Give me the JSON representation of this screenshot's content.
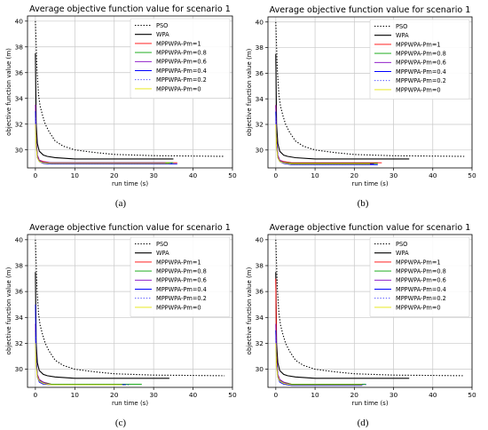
{
  "figure": {
    "panel_labels": [
      "(a)",
      "(b)",
      "(c)",
      "(d)"
    ]
  },
  "chart_data": [
    {
      "type": "line",
      "panel": "(a)",
      "title": "Average objective function value for scenario 1",
      "xlabel": "run time (s)",
      "ylabel": "objective function value (m)",
      "xlim": [
        -2,
        50
      ],
      "ylim": [
        28.6,
        40.4
      ],
      "xticks": [
        0,
        10,
        20,
        30,
        40,
        50
      ],
      "yticks": [
        30,
        32,
        34,
        36,
        38,
        40
      ],
      "grid": true,
      "legend_position": "top-right",
      "series": [
        {
          "name": "PSO",
          "color": "#000000",
          "dash": "dotted",
          "x": [
            0,
            0.4,
            0.8,
            1.2,
            1.8,
            2.5,
            3.5,
            5,
            7,
            10,
            15,
            20,
            30,
            48
          ],
          "y": [
            40,
            36.2,
            34.3,
            33.4,
            32.7,
            32,
            31.4,
            30.7,
            30.3,
            30,
            29.8,
            29.65,
            29.55,
            29.5
          ]
        },
        {
          "name": "WPA",
          "color": "#000000",
          "dash": "solid",
          "x": [
            0,
            0.2,
            0.5,
            1,
            2,
            3,
            5,
            10,
            35
          ],
          "y": [
            37.5,
            32,
            30.5,
            29.9,
            29.6,
            29.5,
            29.4,
            29.3,
            29.3
          ]
        },
        {
          "name": "MPPWPA-Pm=1",
          "color": "#ff0000",
          "dash": "solid",
          "x": [
            0,
            0.2,
            0.5,
            1,
            2,
            4,
            36
          ],
          "y": [
            33.5,
            30.8,
            29.6,
            29.2,
            29.1,
            29.0,
            29.0
          ]
        },
        {
          "name": "MPPWPA-Pm=0.8",
          "color": "#00a000",
          "dash": "solid",
          "x": [
            0,
            0.2,
            0.5,
            1,
            2,
            4,
            35
          ],
          "y": [
            33,
            30.6,
            29.5,
            29.15,
            29.05,
            29.0,
            29.0
          ]
        },
        {
          "name": "MPPWPA-Pm=0.6",
          "color": "#8000c0",
          "dash": "solid",
          "x": [
            0,
            0.2,
            0.5,
            1,
            2,
            4,
            33
          ],
          "y": [
            33.5,
            30.7,
            29.6,
            29.2,
            29.05,
            29.0,
            29.0
          ]
        },
        {
          "name": "MPPWPA-Pm=0.4",
          "color": "#0000ff",
          "dash": "solid",
          "x": [
            0,
            0.2,
            0.5,
            1,
            2,
            4,
            36
          ],
          "y": [
            33,
            30.5,
            29.4,
            29.1,
            28.95,
            28.9,
            28.9
          ]
        },
        {
          "name": "MPPWPA-Pm=0.2",
          "color": "#3a3aff",
          "dash": "dotted",
          "x": [
            0,
            0.2,
            0.5,
            1,
            2,
            4,
            35
          ],
          "y": [
            32.5,
            30.3,
            29.4,
            29.1,
            29.0,
            28.95,
            28.95
          ]
        },
        {
          "name": "MPPWPA-Pm=0",
          "color": "#e6e600",
          "dash": "solid",
          "x": [
            0,
            0.2,
            0.5,
            1,
            2,
            4,
            34
          ],
          "y": [
            32,
            30.2,
            29.4,
            29.1,
            29.0,
            28.95,
            28.95
          ]
        }
      ]
    },
    {
      "type": "line",
      "panel": "(b)",
      "title": "Average objective function value for scenario 1",
      "xlabel": "run time (s)",
      "ylabel": "objective function value (m)",
      "xlim": [
        -2,
        50
      ],
      "ylim": [
        28.6,
        40.4
      ],
      "xticks": [
        0,
        10,
        20,
        30,
        40,
        50
      ],
      "yticks": [
        30,
        32,
        34,
        36,
        38,
        40
      ],
      "grid": true,
      "legend_position": "top-right",
      "series": [
        {
          "name": "PSO",
          "color": "#000000",
          "dash": "dotted",
          "x": [
            0,
            0.4,
            0.8,
            1.2,
            1.8,
            2.5,
            3.5,
            5,
            7,
            10,
            15,
            20,
            30,
            48
          ],
          "y": [
            40,
            36.2,
            34.3,
            33.4,
            32.7,
            32,
            31.4,
            30.7,
            30.3,
            30,
            29.8,
            29.65,
            29.55,
            29.5
          ]
        },
        {
          "name": "WPA",
          "color": "#000000",
          "dash": "solid",
          "x": [
            0,
            0.2,
            0.5,
            1,
            2,
            3,
            5,
            10,
            34
          ],
          "y": [
            37.5,
            32,
            30.5,
            29.9,
            29.6,
            29.5,
            29.4,
            29.3,
            29.3
          ]
        },
        {
          "name": "MPPWPA-Pm=1",
          "color": "#ff0000",
          "dash": "solid",
          "x": [
            0,
            0.2,
            0.5,
            1,
            2,
            4,
            27
          ],
          "y": [
            33.5,
            30.8,
            29.6,
            29.2,
            29.1,
            29.0,
            29.0
          ]
        },
        {
          "name": "MPPWPA-Pm=0.8",
          "color": "#00a000",
          "dash": "solid",
          "x": [
            0,
            0.2,
            0.5,
            1,
            2,
            4,
            26
          ],
          "y": [
            33,
            30.6,
            29.5,
            29.15,
            29.05,
            28.95,
            28.95
          ]
        },
        {
          "name": "MPPWPA-Pm=0.6",
          "color": "#8000c0",
          "dash": "solid",
          "x": [
            0,
            0.2,
            0.5,
            1,
            2,
            4,
            25
          ],
          "y": [
            33.5,
            30.7,
            29.6,
            29.2,
            29.05,
            28.9,
            28.9
          ]
        },
        {
          "name": "MPPWPA-Pm=0.4",
          "color": "#0000ff",
          "dash": "solid",
          "x": [
            0,
            0.2,
            0.5,
            1,
            2,
            4,
            26
          ],
          "y": [
            33,
            30.5,
            29.4,
            29.1,
            28.95,
            28.85,
            28.85
          ]
        },
        {
          "name": "MPPWPA-Pm=0.2",
          "color": "#3a3aff",
          "dash": "dotted",
          "x": [
            0,
            0.2,
            0.5,
            1,
            2,
            4,
            25
          ],
          "y": [
            32.5,
            30.3,
            29.4,
            29.1,
            29.0,
            28.9,
            28.9
          ]
        },
        {
          "name": "MPPWPA-Pm=0",
          "color": "#e6e600",
          "dash": "solid",
          "x": [
            0,
            0.2,
            0.5,
            1,
            2,
            4,
            24
          ],
          "y": [
            32,
            30.2,
            29.4,
            29.1,
            29.0,
            28.9,
            28.9
          ]
        }
      ]
    },
    {
      "type": "line",
      "panel": "(c)",
      "title": "Average objective function value for scenario 1",
      "xlabel": "run time (s)",
      "ylabel": "objective function value (m)",
      "xlim": [
        -2,
        50
      ],
      "ylim": [
        28.6,
        40.4
      ],
      "xticks": [
        0,
        10,
        20,
        30,
        40,
        50
      ],
      "yticks": [
        30,
        32,
        34,
        36,
        38,
        40
      ],
      "grid": true,
      "legend_position": "top-right",
      "series": [
        {
          "name": "PSO",
          "color": "#000000",
          "dash": "dotted",
          "x": [
            0,
            0.4,
            0.8,
            1.2,
            1.8,
            2.5,
            3.5,
            5,
            7,
            10,
            15,
            20,
            30,
            48
          ],
          "y": [
            40,
            36.2,
            34.3,
            33.4,
            32.7,
            32,
            31.4,
            30.7,
            30.3,
            30,
            29.8,
            29.65,
            29.55,
            29.5
          ]
        },
        {
          "name": "WPA",
          "color": "#000000",
          "dash": "solid",
          "x": [
            0,
            0.2,
            0.5,
            1,
            2,
            3,
            5,
            10,
            34
          ],
          "y": [
            37.5,
            32,
            30.5,
            29.9,
            29.6,
            29.5,
            29.4,
            29.3,
            29.3
          ]
        },
        {
          "name": "MPPWPA-Pm=1",
          "color": "#ff0000",
          "dash": "solid",
          "x": [
            0,
            0.2,
            0.5,
            1,
            2,
            4,
            22
          ],
          "y": [
            33.5,
            30.8,
            29.6,
            29.2,
            29.0,
            28.85,
            28.85
          ]
        },
        {
          "name": "MPPWPA-Pm=0.8",
          "color": "#00a000",
          "dash": "solid",
          "x": [
            0,
            0.2,
            0.5,
            1,
            2,
            4,
            27
          ],
          "y": [
            33,
            30.6,
            29.5,
            29.15,
            29.0,
            28.85,
            28.85
          ]
        },
        {
          "name": "MPPWPA-Pm=0.6",
          "color": "#8000c0",
          "dash": "solid",
          "x": [
            0,
            0.2,
            0.5,
            1,
            2,
            4,
            23
          ],
          "y": [
            33.5,
            30.7,
            29.6,
            29.2,
            29.0,
            28.8,
            28.8
          ]
        },
        {
          "name": "MPPWPA-Pm=0.4",
          "color": "#0000ff",
          "dash": "solid",
          "x": [
            0,
            0.2,
            0.5,
            1,
            2,
            4,
            23
          ],
          "y": [
            35,
            30.8,
            29.4,
            29.0,
            28.85,
            28.8,
            28.8
          ]
        },
        {
          "name": "MPPWPA-Pm=0.2",
          "color": "#3a3aff",
          "dash": "dotted",
          "x": [
            0,
            0.2,
            0.5,
            1,
            2,
            4,
            24
          ],
          "y": [
            32.5,
            30.3,
            29.4,
            29.1,
            28.9,
            28.8,
            28.8
          ]
        },
        {
          "name": "MPPWPA-Pm=0",
          "color": "#e6e600",
          "dash": "solid",
          "x": [
            0,
            0.2,
            0.5,
            1,
            2,
            4,
            22
          ],
          "y": [
            32,
            30.2,
            29.4,
            29.1,
            28.9,
            28.8,
            28.8
          ]
        }
      ]
    },
    {
      "type": "line",
      "panel": "(d)",
      "title": "Average objective function value for scenario 1",
      "xlabel": "run time (s)",
      "ylabel": "objective function value (m)",
      "xlim": [
        -2,
        50
      ],
      "ylim": [
        28.6,
        40.4
      ],
      "xticks": [
        0,
        10,
        20,
        30,
        40,
        50
      ],
      "yticks": [
        30,
        32,
        34,
        36,
        38,
        40
      ],
      "grid": true,
      "legend_position": "top-right",
      "series": [
        {
          "name": "PSO",
          "color": "#000000",
          "dash": "dotted",
          "x": [
            0,
            0.4,
            0.8,
            1.2,
            1.8,
            2.5,
            3.5,
            5,
            7,
            10,
            15,
            20,
            30,
            48
          ],
          "y": [
            40,
            36.2,
            34.3,
            33.4,
            32.7,
            32,
            31.4,
            30.7,
            30.3,
            30,
            29.8,
            29.65,
            29.55,
            29.5
          ]
        },
        {
          "name": "WPA",
          "color": "#000000",
          "dash": "solid",
          "x": [
            0,
            0.2,
            0.5,
            1,
            2,
            3,
            5,
            10,
            34
          ],
          "y": [
            37.5,
            32,
            30.5,
            29.9,
            29.6,
            29.5,
            29.4,
            29.3,
            29.3
          ]
        },
        {
          "name": "MPPWPA-Pm=1",
          "color": "#ff0000",
          "dash": "solid",
          "x": [
            0,
            0.2,
            0.5,
            1,
            2,
            4,
            22
          ],
          "y": [
            37,
            31,
            29.6,
            29.2,
            29.0,
            28.85,
            28.85
          ]
        },
        {
          "name": "MPPWPA-Pm=0.8",
          "color": "#00a000",
          "dash": "solid",
          "x": [
            0,
            0.2,
            0.5,
            1,
            2,
            4,
            23
          ],
          "y": [
            33,
            30.6,
            29.5,
            29.15,
            29.0,
            28.85,
            28.85
          ]
        },
        {
          "name": "MPPWPA-Pm=0.6",
          "color": "#8000c0",
          "dash": "solid",
          "x": [
            0,
            0.2,
            0.5,
            1,
            2,
            4,
            22
          ],
          "y": [
            33.5,
            30.7,
            29.6,
            29.2,
            29.0,
            28.8,
            28.8
          ]
        },
        {
          "name": "MPPWPA-Pm=0.4",
          "color": "#0000ff",
          "dash": "solid",
          "x": [
            0,
            0.2,
            0.5,
            1,
            2,
            4,
            22
          ],
          "y": [
            33,
            30.5,
            29.4,
            29.0,
            28.85,
            28.75,
            28.75
          ]
        },
        {
          "name": "MPPWPA-Pm=0.2",
          "color": "#3a3aff",
          "dash": "dotted",
          "x": [
            0,
            0.2,
            0.5,
            1,
            2,
            4,
            23
          ],
          "y": [
            32.5,
            30.3,
            29.4,
            29.1,
            28.9,
            28.8,
            28.8
          ]
        },
        {
          "name": "MPPWPA-Pm=0",
          "color": "#e6e600",
          "dash": "solid",
          "x": [
            0,
            0.2,
            0.5,
            1,
            2,
            4,
            22
          ],
          "y": [
            32,
            30.2,
            29.4,
            29.1,
            28.9,
            28.8,
            28.8
          ]
        }
      ]
    }
  ]
}
